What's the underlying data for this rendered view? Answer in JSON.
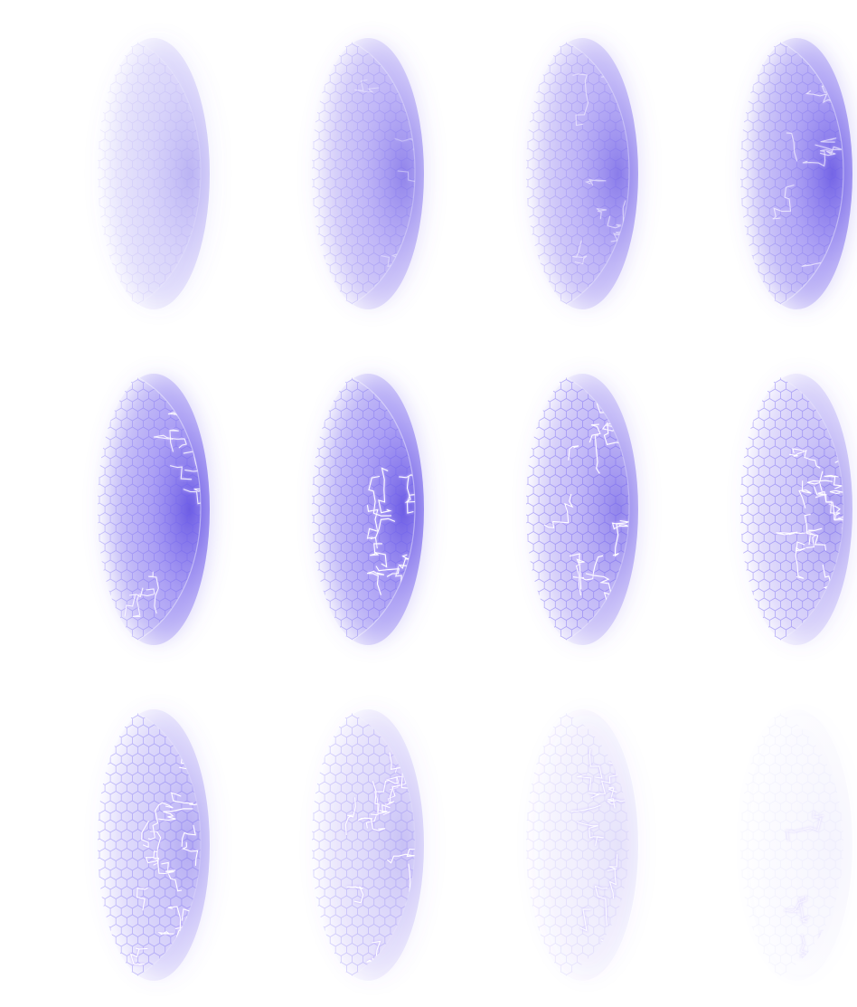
{
  "sprite_sheet": {
    "subject": "energy-shield-hit",
    "columns": 4,
    "rows": 3,
    "colors": {
      "glow": "#7b68ee",
      "glow_deep": "#5a48e0",
      "hex_grid": "#6a5cf0",
      "crack": "#ffffff",
      "crack_glow": "#c9b8ff",
      "background": "#ffffff"
    },
    "frames": [
      {
        "index": 1,
        "glow_opacity": 0.35,
        "grid_opacity": 0.1,
        "crack_amount": 0.0
      },
      {
        "index": 2,
        "glow_opacity": 0.6,
        "grid_opacity": 0.22,
        "crack_amount": 0.04
      },
      {
        "index": 3,
        "glow_opacity": 0.65,
        "grid_opacity": 0.25,
        "crack_amount": 0.18
      },
      {
        "index": 4,
        "glow_opacity": 0.8,
        "grid_opacity": 0.3,
        "crack_amount": 0.3
      },
      {
        "index": 5,
        "glow_opacity": 0.85,
        "grid_opacity": 0.35,
        "crack_amount": 0.5
      },
      {
        "index": 6,
        "glow_opacity": 0.85,
        "grid_opacity": 0.38,
        "crack_amount": 0.65
      },
      {
        "index": 7,
        "glow_opacity": 0.6,
        "grid_opacity": 0.45,
        "crack_amount": 0.85
      },
      {
        "index": 8,
        "glow_opacity": 0.45,
        "grid_opacity": 0.45,
        "crack_amount": 1.0
      },
      {
        "index": 9,
        "glow_opacity": 0.4,
        "grid_opacity": 0.38,
        "crack_amount": 1.0
      },
      {
        "index": 10,
        "glow_opacity": 0.28,
        "grid_opacity": 0.28,
        "crack_amount": 0.85
      },
      {
        "index": 11,
        "glow_opacity": 0.12,
        "grid_opacity": 0.12,
        "crack_amount": 0.55
      },
      {
        "index": 12,
        "glow_opacity": 0.05,
        "grid_opacity": 0.05,
        "crack_amount": 0.25
      }
    ]
  }
}
